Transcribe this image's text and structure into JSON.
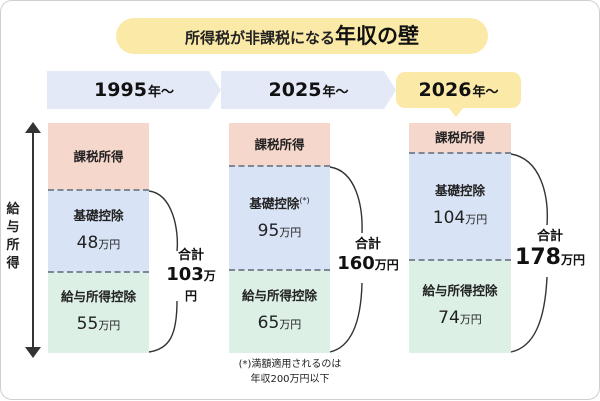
{
  "title": {
    "main": "所得税が非課税になる",
    "emphasis": "年収の壁"
  },
  "axis_label": "給与所得",
  "columns": [
    {
      "year": "1995",
      "year_suffix": "年～",
      "segments": {
        "taxable": {
          "label": "課税所得"
        },
        "basic": {
          "label": "基礎控除",
          "value": "48",
          "unit": "万円"
        },
        "employment": {
          "label": "給与所得控除",
          "value": "55",
          "unit": "万円"
        }
      },
      "total": {
        "label": "合計",
        "value": "103",
        "unit": "万円"
      }
    },
    {
      "year": "2025",
      "year_suffix": "年～",
      "segments": {
        "taxable": {
          "label": "課税所得"
        },
        "basic": {
          "label": "基礎控除",
          "note_mark": "(*)",
          "value": "95",
          "unit": "万円"
        },
        "employment": {
          "label": "給与所得控除",
          "value": "65",
          "unit": "万円"
        }
      },
      "total": {
        "label": "合計",
        "value": "160",
        "unit": "万円"
      }
    },
    {
      "year": "2026",
      "year_suffix": "年～",
      "segments": {
        "taxable": {
          "label": "課税所得"
        },
        "basic": {
          "label": "基礎控除",
          "value": "104",
          "unit": "万円"
        },
        "employment": {
          "label": "給与所得控除",
          "value": "74",
          "unit": "万円"
        }
      },
      "total": {
        "label": "合計",
        "value": "178",
        "unit": "万円"
      }
    }
  ],
  "footnote": {
    "line1": "(*)満額適用されるのは",
    "line2": "年収200万円以下"
  },
  "colors": {
    "taxable": "#f6d7cc",
    "basic": "#d8e3f5",
    "employment": "#dcf0e6",
    "header": "#e3e9f6",
    "highlight": "#fbe9a8"
  }
}
